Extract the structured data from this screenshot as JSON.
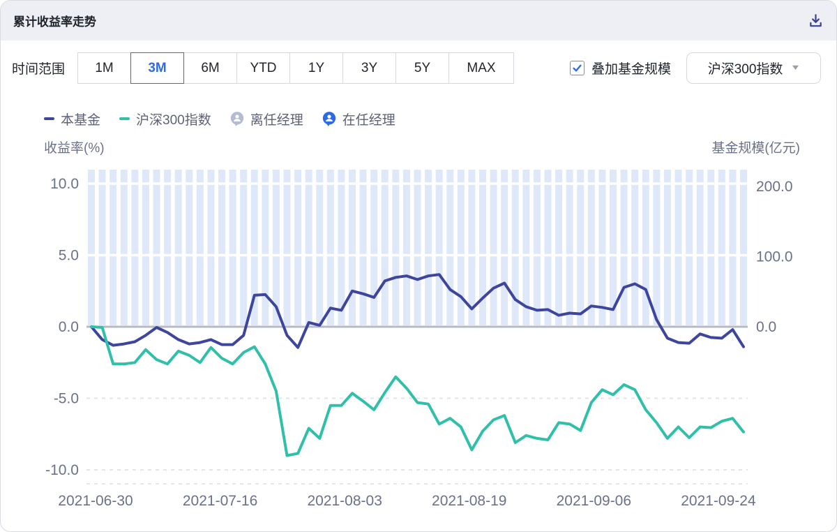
{
  "header": {
    "title": "累计收益率走势"
  },
  "toolbar": {
    "time_range_label": "时间范围",
    "time_ranges": [
      "1M",
      "3M",
      "6M",
      "YTD",
      "1Y",
      "3Y",
      "5Y",
      "MAX"
    ],
    "selected_range": "3M",
    "overlay_label": "叠加基金规模",
    "overlay_checked": true,
    "index_select_value": "沪深300指数"
  },
  "legend": {
    "fund_label": "本基金",
    "index_label": "沪深300指数",
    "former_manager_label": "离任经理",
    "current_manager_label": "在任经理"
  },
  "colors": {
    "fund_line": "#3d459c",
    "index_line": "#30c0a9",
    "bar_fill": "#dfe8f8",
    "accent_blue": "#2e6be6",
    "former_manager_badge": "#b4bbd3",
    "current_manager_badge": "#2d6ae3",
    "icon_navy": "#3a4095",
    "axis_text": "#6b7189",
    "zero_line": "#b6bac4",
    "header_bg": "#edeff5"
  },
  "chart_data": {
    "type": "line",
    "title": "累计收益率走势",
    "x_dates": [
      "2021-06-30",
      "2021-07-01",
      "2021-07-02",
      "2021-07-05",
      "2021-07-06",
      "2021-07-07",
      "2021-07-08",
      "2021-07-09",
      "2021-07-12",
      "2021-07-13",
      "2021-07-14",
      "2021-07-15",
      "2021-07-16",
      "2021-07-19",
      "2021-07-20",
      "2021-07-21",
      "2021-07-22",
      "2021-07-23",
      "2021-07-26",
      "2021-07-27",
      "2021-07-28",
      "2021-07-29",
      "2021-07-30",
      "2021-08-02",
      "2021-08-03",
      "2021-08-04",
      "2021-08-05",
      "2021-08-06",
      "2021-08-09",
      "2021-08-10",
      "2021-08-11",
      "2021-08-12",
      "2021-08-13",
      "2021-08-16",
      "2021-08-17",
      "2021-08-18",
      "2021-08-19",
      "2021-08-20",
      "2021-08-23",
      "2021-08-24",
      "2021-08-25",
      "2021-08-26",
      "2021-08-27",
      "2021-08-30",
      "2021-08-31",
      "2021-09-01",
      "2021-09-02",
      "2021-09-03",
      "2021-09-06",
      "2021-09-07",
      "2021-09-08",
      "2021-09-09",
      "2021-09-10",
      "2021-09-13",
      "2021-09-14",
      "2021-09-15",
      "2021-09-16",
      "2021-09-17",
      "2021-09-22",
      "2021-09-23",
      "2021-09-24"
    ],
    "x_tick_labels": [
      "2021-06-30",
      "2021-07-16",
      "2021-08-03",
      "2021-08-19",
      "2021-09-06",
      "2021-09-24"
    ],
    "x_tick_indices": [
      0,
      12,
      24,
      36,
      48,
      60
    ],
    "left_axis": {
      "title": "收益率(%)",
      "tick_labels": [
        "10.0",
        "5.0",
        "0.0",
        "-5.0",
        "-10.0"
      ],
      "tick_values": [
        10,
        5,
        0,
        -5,
        -10
      ],
      "range": [
        -11,
        11.1
      ],
      "grid": "dashed"
    },
    "right_axis": {
      "title": "基金规模(亿元)",
      "tick_labels": [
        "200.0",
        "100.0",
        "0.0"
      ],
      "tick_values": [
        200,
        100,
        0
      ],
      "range": [
        0,
        226
      ]
    },
    "series": [
      {
        "name": "本基金",
        "type": "line",
        "axis": "left",
        "color": "#3d459c",
        "values": [
          0,
          -0.9,
          -1.3,
          -1.2,
          -1.05,
          -0.6,
          -0.05,
          -0.4,
          -0.9,
          -1.2,
          -1.1,
          -0.9,
          -1.25,
          -1.25,
          -0.6,
          2.2,
          2.25,
          1.4,
          -0.6,
          -1.45,
          0.3,
          0.1,
          1.3,
          1.15,
          2.5,
          2.3,
          2.05,
          3.2,
          3.45,
          3.55,
          3.3,
          3.55,
          3.65,
          2.6,
          2.1,
          1.25,
          2,
          2.7,
          3.05,
          1.9,
          1.4,
          1.15,
          1.2,
          0.8,
          0.95,
          0.9,
          1.45,
          1.35,
          1.2,
          2.75,
          3,
          2.6,
          0.5,
          -0.8,
          -1.1,
          -1.15,
          -0.5,
          -0.75,
          -0.8,
          -0.2,
          -1.4
        ]
      },
      {
        "name": "沪深300指数",
        "type": "line",
        "axis": "left",
        "color": "#30c0a9",
        "values": [
          0,
          -0.05,
          -2.6,
          -2.6,
          -2.5,
          -1.6,
          -2.3,
          -2.6,
          -1.7,
          -2,
          -2.5,
          -1.45,
          -2.2,
          -2.6,
          -1.8,
          -1.4,
          -2.6,
          -4.5,
          -9,
          -8.85,
          -7.1,
          -7.8,
          -5.5,
          -5.5,
          -4.65,
          -5.2,
          -5.8,
          -4.6,
          -3.5,
          -4.3,
          -5.3,
          -5.4,
          -6.8,
          -6.4,
          -7,
          -8.6,
          -7.3,
          -6.5,
          -6.2,
          -8.1,
          -7.6,
          -7.8,
          -7.9,
          -6.7,
          -6.8,
          -7.25,
          -5.3,
          -4.4,
          -4.75,
          -4.05,
          -4.4,
          -5.8,
          -6.7,
          -7.8,
          -7,
          -7.75,
          -7,
          -7.05,
          -6.6,
          -6.4,
          -7.35
        ]
      },
      {
        "name": "基金规模",
        "type": "bar",
        "axis": "right",
        "color": "#dfe8f8",
        "bar_count": 61,
        "values_exceed_axis_max": true,
        "note": "all 61 bars are clipped at the plot top; fund size exceeds the visible right-axis range (>200 亿元)"
      }
    ]
  }
}
